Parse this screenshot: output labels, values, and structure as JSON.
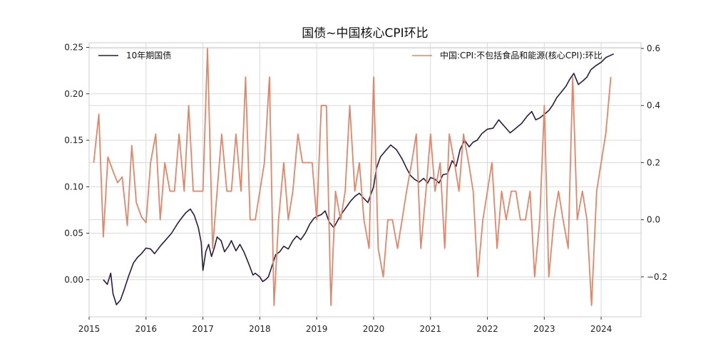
{
  "chart_data": {
    "type": "line",
    "title": "国债~中国核心CPI环比",
    "xlabel": "",
    "ylabel_left": "",
    "ylabel_right": "",
    "x_ticks": [
      "2015",
      "2016",
      "2017",
      "2018",
      "2019",
      "2020",
      "2021",
      "2022",
      "2023",
      "2024"
    ],
    "xlim": [
      2015.0,
      2024.7
    ],
    "grid": true,
    "legend_left": "top-left",
    "legend_right": "top-right",
    "left_axis": {
      "ylim": [
        -0.04,
        0.255
      ],
      "ticks": [
        0.0,
        0.05,
        0.1,
        0.15,
        0.2,
        0.25
      ],
      "tick_labels": [
        "0.00",
        "0.05",
        "0.10",
        "0.15",
        "0.20",
        "0.25"
      ]
    },
    "right_axis": {
      "ylim": [
        -0.34,
        0.62
      ],
      "ticks": [
        -0.2,
        0.0,
        0.2,
        0.4,
        0.6
      ],
      "tick_labels": [
        "−0.2",
        "0.0",
        "0.2",
        "0.4",
        "0.6"
      ]
    },
    "series": [
      {
        "name": "10年期国债",
        "axis": "left",
        "color": "#2d1a3d",
        "x": [
          2015.25,
          2015.32,
          2015.38,
          2015.42,
          2015.48,
          2015.55,
          2015.62,
          2015.7,
          2015.78,
          2015.85,
          2015.92,
          2016.0,
          2016.08,
          2016.15,
          2016.25,
          2016.35,
          2016.45,
          2016.55,
          2016.62,
          2016.7,
          2016.78,
          2016.85,
          2016.92,
          2016.97,
          2017.0,
          2017.05,
          2017.1,
          2017.15,
          2017.2,
          2017.25,
          2017.32,
          2017.38,
          2017.45,
          2017.5,
          2017.58,
          2017.65,
          2017.72,
          2017.8,
          2017.88,
          2017.92,
          2018.0,
          2018.05,
          2018.1,
          2018.15,
          2018.2,
          2018.28,
          2018.35,
          2018.42,
          2018.5,
          2018.58,
          2018.65,
          2018.72,
          2018.8,
          2018.88,
          2018.95,
          2019.0,
          2019.08,
          2019.15,
          2019.22,
          2019.3,
          2019.38,
          2019.45,
          2019.52,
          2019.6,
          2019.68,
          2019.75,
          2019.82,
          2019.9,
          2019.97,
          2020.0,
          2020.05,
          2020.12,
          2020.2,
          2020.3,
          2020.4,
          2020.5,
          2020.58,
          2020.65,
          2020.72,
          2020.8,
          2020.88,
          2020.95,
          2021.0,
          2021.08,
          2021.15,
          2021.22,
          2021.3,
          2021.38,
          2021.45,
          2021.52,
          2021.6,
          2021.68,
          2021.75,
          2021.82,
          2021.9,
          2022.0,
          2022.1,
          2022.2,
          2022.3,
          2022.4,
          2022.5,
          2022.6,
          2022.7,
          2022.78,
          2022.85,
          2022.92,
          2023.0,
          2023.08,
          2023.15,
          2023.22,
          2023.3,
          2023.38,
          2023.45,
          2023.52,
          2023.6,
          2023.68,
          2023.75,
          2023.82,
          2023.9,
          2024.0,
          2024.08,
          2024.15,
          2024.22
        ],
        "y": [
          0.0,
          -0.005,
          0.007,
          -0.015,
          -0.027,
          -0.022,
          -0.01,
          0.005,
          0.018,
          0.024,
          0.028,
          0.034,
          0.033,
          0.028,
          0.036,
          0.043,
          0.05,
          0.06,
          0.066,
          0.072,
          0.076,
          0.069,
          0.056,
          0.04,
          0.01,
          0.03,
          0.038,
          0.025,
          0.034,
          0.046,
          0.042,
          0.03,
          0.036,
          0.042,
          0.031,
          0.038,
          0.03,
          0.018,
          0.005,
          0.007,
          0.003,
          -0.002,
          0.0,
          0.003,
          0.012,
          0.027,
          0.03,
          0.036,
          0.033,
          0.042,
          0.047,
          0.043,
          0.05,
          0.06,
          0.066,
          0.068,
          0.07,
          0.074,
          0.062,
          0.056,
          0.065,
          0.072,
          0.078,
          0.085,
          0.09,
          0.093,
          0.088,
          0.083,
          0.095,
          0.1,
          0.12,
          0.132,
          0.138,
          0.145,
          0.14,
          0.13,
          0.12,
          0.112,
          0.108,
          0.105,
          0.109,
          0.104,
          0.11,
          0.108,
          0.104,
          0.113,
          0.114,
          0.128,
          0.122,
          0.14,
          0.15,
          0.143,
          0.148,
          0.15,
          0.157,
          0.162,
          0.163,
          0.172,
          0.165,
          0.158,
          0.163,
          0.168,
          0.176,
          0.181,
          0.172,
          0.174,
          0.178,
          0.182,
          0.188,
          0.196,
          0.202,
          0.208,
          0.216,
          0.222,
          0.21,
          0.214,
          0.218,
          0.226,
          0.23,
          0.234,
          0.239,
          0.241,
          0.243
        ]
      },
      {
        "name": "中国:CPI:不包括食品和能源(核心CPI):环比",
        "axis": "right",
        "color": "#e0876a",
        "x": [
          2015.08,
          2015.17,
          2015.25,
          2015.33,
          2015.42,
          2015.5,
          2015.58,
          2015.67,
          2015.75,
          2015.83,
          2015.92,
          2016.0,
          2016.08,
          2016.17,
          2016.25,
          2016.33,
          2016.42,
          2016.5,
          2016.58,
          2016.67,
          2016.75,
          2016.83,
          2016.92,
          2017.0,
          2017.08,
          2017.17,
          2017.25,
          2017.33,
          2017.42,
          2017.5,
          2017.58,
          2017.67,
          2017.75,
          2017.83,
          2017.92,
          2018.0,
          2018.08,
          2018.17,
          2018.25,
          2018.33,
          2018.42,
          2018.5,
          2018.58,
          2018.67,
          2018.75,
          2018.83,
          2018.92,
          2019.0,
          2019.08,
          2019.17,
          2019.25,
          2019.33,
          2019.42,
          2019.5,
          2019.58,
          2019.67,
          2019.75,
          2019.83,
          2019.92,
          2020.0,
          2020.08,
          2020.17,
          2020.25,
          2020.33,
          2020.42,
          2020.5,
          2020.58,
          2020.67,
          2020.75,
          2020.83,
          2020.92,
          2021.0,
          2021.08,
          2021.17,
          2021.25,
          2021.33,
          2021.42,
          2021.5,
          2021.58,
          2021.67,
          2021.75,
          2021.83,
          2021.92,
          2022.0,
          2022.08,
          2022.17,
          2022.25,
          2022.33,
          2022.42,
          2022.5,
          2022.58,
          2022.67,
          2022.75,
          2022.83,
          2022.92,
          2023.0,
          2023.08,
          2023.17,
          2023.25,
          2023.33,
          2023.42,
          2023.5,
          2023.58,
          2023.67,
          2023.75,
          2023.83,
          2023.92,
          2024.0,
          2024.08,
          2024.17
        ],
        "y": [
          0.2,
          0.37,
          -0.06,
          0.22,
          0.17,
          0.13,
          0.15,
          -0.02,
          0.26,
          0.06,
          0.01,
          -0.01,
          0.2,
          0.3,
          0.0,
          0.2,
          0.1,
          0.1,
          0.3,
          0.1,
          0.4,
          0.1,
          0.1,
          0.1,
          0.6,
          -0.1,
          0.1,
          0.3,
          0.1,
          0.1,
          0.3,
          0.1,
          0.5,
          0.0,
          0.0,
          0.1,
          0.2,
          0.5,
          -0.3,
          0.0,
          0.2,
          0.0,
          0.1,
          0.3,
          0.2,
          0.2,
          0.2,
          0.0,
          0.4,
          0.4,
          -0.3,
          0.1,
          0.0,
          0.1,
          0.4,
          0.1,
          0.2,
          0.0,
          -0.1,
          0.5,
          -0.1,
          -0.2,
          0.0,
          0.0,
          -0.1,
          0.0,
          0.1,
          0.2,
          0.3,
          -0.1,
          0.1,
          0.3,
          0.1,
          0.2,
          -0.1,
          0.3,
          0.2,
          0.1,
          0.3,
          0.2,
          0.1,
          -0.2,
          0.0,
          0.1,
          0.2,
          -0.1,
          0.1,
          0.0,
          0.1,
          0.1,
          0.0,
          0.0,
          0.1,
          -0.2,
          0.0,
          0.4,
          -0.2,
          0.0,
          0.1,
          0.0,
          -0.1,
          0.5,
          0.0,
          0.1,
          0.0,
          -0.3,
          0.1,
          0.2,
          0.3,
          0.5
        ]
      }
    ]
  }
}
